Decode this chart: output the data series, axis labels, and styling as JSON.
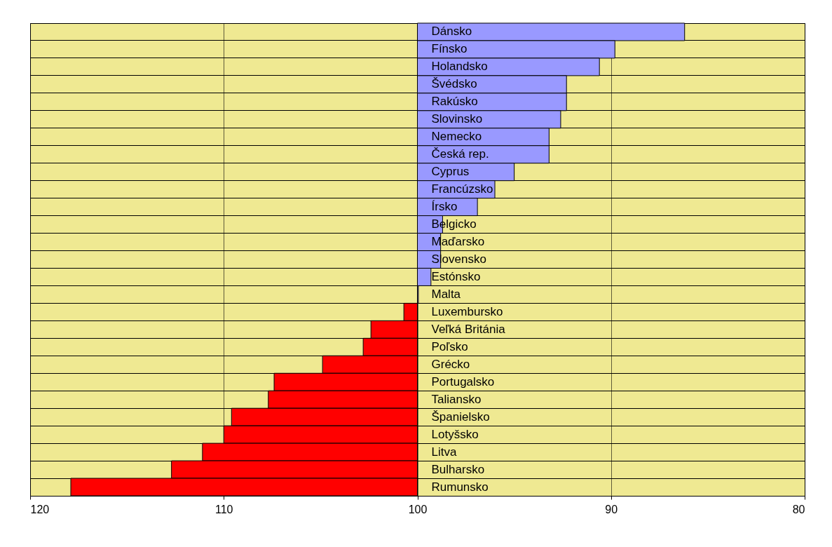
{
  "chart_data": {
    "type": "bar",
    "orientation": "horizontal",
    "categories": [
      "Dánsko",
      "Fínsko",
      "Holandsko",
      "Švédsko",
      "Rakúsko",
      "Slovinsko",
      "Nemecko",
      "Česká rep.",
      "Cyprus",
      "Francúzsko",
      "Írsko",
      "Belgicko",
      "Maďarsko",
      "Slovensko",
      "Estónsko",
      "Malta",
      "Luxembursko",
      "Veľká Británia",
      "Poľsko",
      "Grécko",
      "Portugalsko",
      "Taliansko",
      "Španielsko",
      "Lotyšsko",
      "Litva",
      "Bulharsko",
      "Rumunsko"
    ],
    "base": [
      100,
      100,
      100,
      100,
      100,
      100,
      100,
      100,
      100,
      100,
      100,
      100,
      100,
      100,
      100,
      100,
      100,
      100,
      100,
      100,
      100,
      100,
      100,
      100,
      100,
      100,
      100
    ],
    "values": [
      -13.8,
      -10.2,
      -9.4,
      -7.7,
      -7.7,
      -7.4,
      -6.8,
      -6.8,
      -5.0,
      -4.0,
      -3.1,
      -1.3,
      -1.2,
      -1.2,
      -0.7,
      -0.05,
      0.7,
      2.4,
      2.8,
      4.9,
      7.4,
      7.7,
      9.6,
      10.0,
      11.1,
      12.7,
      17.9
    ],
    "colors": [
      "#9999ff",
      "#9999ff",
      "#9999ff",
      "#9999ff",
      "#9999ff",
      "#9999ff",
      "#9999ff",
      "#9999ff",
      "#9999ff",
      "#9999ff",
      "#9999ff",
      "#9999ff",
      "#9999ff",
      "#9999ff",
      "#9999ff",
      "#9999ff",
      "#ff0000",
      "#ff0000",
      "#ff0000",
      "#ff0000",
      "#ff0000",
      "#ff0000",
      "#ff0000",
      "#ff0000",
      "#ff0000",
      "#ff0000",
      "#ff0000"
    ],
    "xlim": [
      120,
      80
    ],
    "xticks": [
      120,
      110,
      100,
      90,
      80
    ],
    "grid": true
  }
}
